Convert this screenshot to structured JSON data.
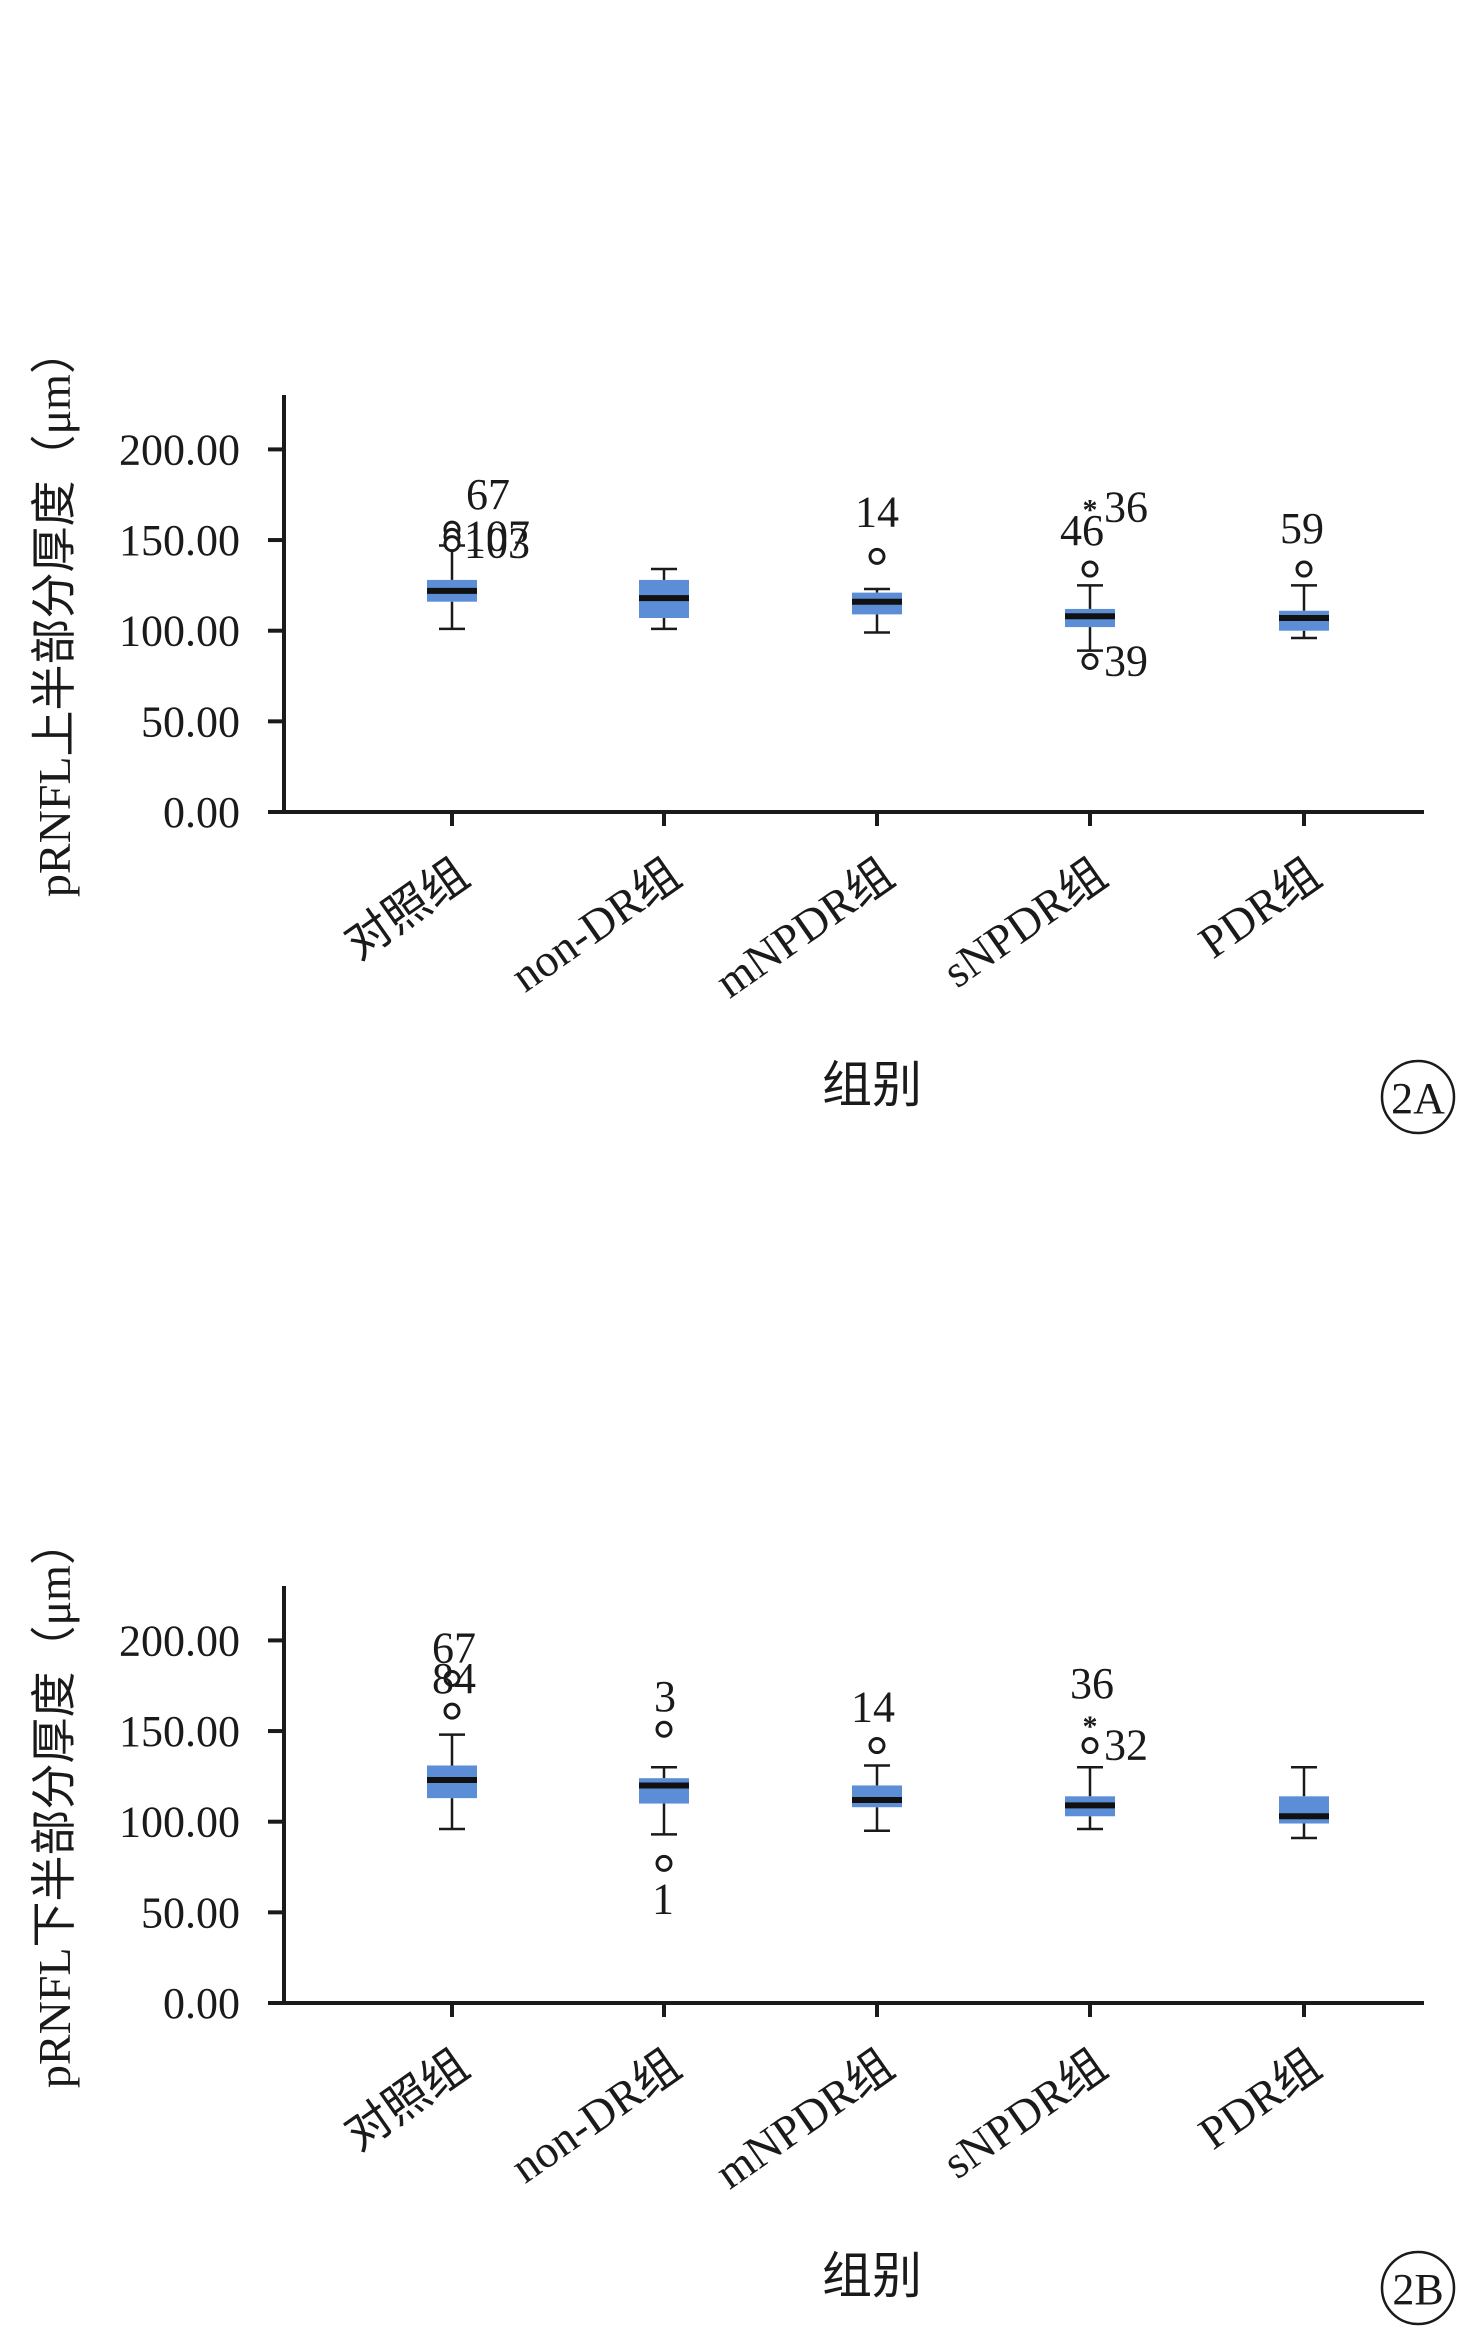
{
  "colors": {
    "box": "#5b8ed6",
    "axis": "#1a1a1a"
  },
  "chart_data": [
    {
      "type": "box",
      "panel_label": "2A",
      "ylabel": "pRNFL上半部分厚度（μm）",
      "xlabel": "组别",
      "ylim": [
        0,
        220
      ],
      "yticks": [
        0,
        50,
        100,
        150,
        200
      ],
      "ytick_labels": [
        "0.00",
        "50.00",
        "100.00",
        "150.00",
        "200.00"
      ],
      "grid": false,
      "categories": [
        "对照组",
        "non-DR组",
        "mNPDR组",
        "sNPDR组",
        "PDR组"
      ],
      "boxes": [
        {
          "whisker_low": 101,
          "q1": 116,
          "median": 122,
          "q3": 128,
          "whisker_high": 147,
          "outliers": [
            {
              "value": 156,
              "label": "67",
              "kind": "circle"
            },
            {
              "value": 152,
              "label": "107",
              "kind": "circle"
            },
            {
              "value": 148,
              "label": "103",
              "kind": "circle"
            }
          ]
        },
        {
          "whisker_low": 101,
          "q1": 107,
          "median": 118,
          "q3": 128,
          "whisker_high": 134,
          "outliers": []
        },
        {
          "whisker_low": 99,
          "q1": 109,
          "median": 116,
          "q3": 121,
          "whisker_high": 123,
          "outliers": [
            {
              "value": 141,
              "label": "14",
              "kind": "circle"
            }
          ]
        },
        {
          "whisker_low": 89,
          "q1": 102,
          "median": 108,
          "q3": 112,
          "whisker_high": 125,
          "outliers": [
            {
              "value": 168,
              "label": "36",
              "kind": "star"
            },
            {
              "value": 134,
              "label": "46",
              "kind": "circle"
            },
            {
              "value": 83,
              "label": "39",
              "kind": "circle"
            }
          ]
        },
        {
          "whisker_low": 96,
          "q1": 100,
          "median": 107,
          "q3": 111,
          "whisker_high": 125,
          "outliers": [
            {
              "value": 134,
              "label": "59",
              "kind": "circle"
            }
          ]
        }
      ]
    },
    {
      "type": "box",
      "panel_label": "2B",
      "ylabel": "pRNFL下半部分厚度（μm）",
      "xlabel": "组别",
      "ylim": [
        0,
        220
      ],
      "yticks": [
        0,
        50,
        100,
        150,
        200
      ],
      "ytick_labels": [
        "0.00",
        "50.00",
        "100.00",
        "150.00",
        "200.00"
      ],
      "grid": false,
      "categories": [
        "对照组",
        "non-DR组",
        "mNPDR组",
        "sNPDR组",
        "PDR组"
      ],
      "boxes": [
        {
          "whisker_low": 96,
          "q1": 113,
          "median": 123,
          "q3": 131,
          "whisker_high": 148,
          "outliers": [
            {
              "value": 179,
              "label": "67",
              "kind": "circle"
            },
            {
              "value": 161,
              "label": "84",
              "kind": "circle"
            }
          ]
        },
        {
          "whisker_low": 93,
          "q1": 110,
          "median": 120,
          "q3": 124,
          "whisker_high": 130,
          "outliers": [
            {
              "value": 151,
              "label": "3",
              "kind": "circle"
            },
            {
              "value": 77,
              "label": "1",
              "kind": "circle"
            }
          ]
        },
        {
          "whisker_low": 95,
          "q1": 108,
          "median": 112,
          "q3": 120,
          "whisker_high": 131,
          "outliers": [
            {
              "value": 142,
              "label": "14",
              "kind": "circle"
            }
          ]
        },
        {
          "whisker_low": 96,
          "q1": 103,
          "median": 109,
          "q3": 114,
          "whisker_high": 130,
          "outliers": [
            {
              "value": 154,
              "label": "36",
              "kind": "star"
            },
            {
              "value": 142,
              "label": "32",
              "kind": "circle"
            }
          ]
        },
        {
          "whisker_low": 91,
          "q1": 99,
          "median": 103,
          "q3": 114,
          "whisker_high": 130,
          "outliers": []
        }
      ]
    }
  ]
}
